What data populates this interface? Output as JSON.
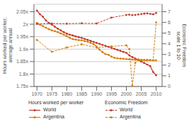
{
  "chart_data": {
    "type": "line",
    "ylabel": "Hours worked per worker,\naverage annual",
    "y2label": "Economic Freedom\nscale 1 to 10",
    "annotations": [
      "Hours worked per worker",
      "Economic Freedom"
    ],
    "xlim": [
      1969,
      2012
    ],
    "xticks": [
      1970,
      1975,
      1980,
      1985,
      1990,
      1995,
      2000,
      2005,
      2010
    ],
    "ylim": [
      1.75,
      2.08
    ],
    "yticks": [
      {
        "value": 1.75,
        "label": "1.75x"
      },
      {
        "value": 1.8,
        "label": "1.8x"
      },
      {
        "value": 1.85,
        "label": "1.85x"
      },
      {
        "value": 1.9,
        "label": "1.9x"
      },
      {
        "value": 1.95,
        "label": "1.95x"
      },
      {
        "value": 2.0,
        "label": "2x"
      },
      {
        "value": 2.05,
        "label": "2.05x"
      }
    ],
    "y2lim": [
      0,
      7.7
    ],
    "y2ticks": [
      0,
      1,
      2,
      3,
      4,
      5,
      6,
      7
    ],
    "grid": true,
    "series": [
      {
        "name": "World",
        "color": "#c0392b",
        "line_style": "solid",
        "marker": "circle",
        "x": [
          1970,
          1971,
          1972,
          1973,
          1974,
          1975,
          1976,
          1977,
          1978,
          1979,
          1980,
          1981,
          1982,
          1983,
          1984,
          1985,
          1986,
          1987,
          1988,
          1989,
          1990,
          1991,
          1992,
          1993,
          1994,
          1995,
          1996,
          1997,
          1998,
          1999,
          2000,
          2001,
          2002,
          2003,
          2004,
          2005,
          2006,
          2007,
          2008,
          2009,
          2010
        ],
        "values": [
          2.055,
          2.04,
          2.03,
          2.015,
          2.005,
          1.998,
          1.99,
          1.982,
          1.975,
          1.968,
          1.962,
          1.958,
          1.955,
          1.951,
          1.948,
          1.945,
          1.941,
          1.937,
          1.933,
          1.929,
          1.925,
          1.921,
          1.917,
          1.913,
          1.909,
          1.905,
          1.901,
          1.897,
          1.893,
          1.889,
          1.885,
          1.875,
          1.868,
          1.862,
          1.856,
          1.85,
          1.844,
          1.838,
          1.832,
          1.808,
          1.795
        ]
      },
      {
        "name": "Argentina",
        "color": "#d47c0f",
        "line_style": "solid",
        "marker": "circle",
        "x": [
          1970,
          1971,
          1972,
          1973,
          1974,
          1975,
          1976,
          1977,
          1978,
          1979,
          1980,
          1981,
          1982,
          1983,
          1984,
          1985,
          1986,
          1987,
          1988,
          1989,
          1990,
          1991,
          1992,
          1993,
          1994,
          1995,
          1996,
          1997,
          1998,
          1999,
          2000,
          2001,
          2002,
          2003,
          2004,
          2005,
          2006,
          2007,
          2008,
          2009,
          2010
        ],
        "values": [
          2.005,
          1.998,
          1.992,
          1.986,
          1.98,
          1.975,
          1.972,
          1.968,
          1.963,
          1.958,
          1.952,
          1.945,
          1.94,
          1.938,
          1.936,
          1.935,
          1.932,
          1.93,
          1.925,
          1.92,
          1.91,
          1.898,
          1.888,
          1.88,
          1.877,
          1.87,
          1.865,
          1.863,
          1.862,
          1.861,
          1.86,
          1.859,
          1.858,
          1.857,
          1.856,
          1.855,
          1.855,
          1.855,
          1.855,
          1.855,
          1.855
        ]
      },
      {
        "name": "World",
        "axis": "y2",
        "color": "#c0392b",
        "line_style": "dashed",
        "marker": "circle",
        "x": [
          1970,
          1975,
          1980,
          1985,
          1990,
          1995,
          2000,
          2001,
          2002,
          2003,
          2004,
          2005,
          2006,
          2007,
          2008,
          2009,
          2010
        ],
        "values": [
          5.85,
          5.9,
          5.88,
          5.92,
          5.9,
          6.45,
          6.7,
          6.72,
          6.68,
          6.7,
          6.74,
          6.78,
          6.82,
          6.84,
          6.8,
          6.76,
          6.88
        ]
      },
      {
        "name": "Argentina",
        "axis": "y2",
        "color": "#d47c0f",
        "line_style": "dashed",
        "marker": "circle",
        "x": [
          1970,
          1975,
          1980,
          1985,
          1990,
          1995,
          2000,
          2001,
          2002,
          2003,
          2004,
          2005,
          2006,
          2007,
          2008,
          2009,
          2010
        ],
        "values": [
          4.35,
          3.25,
          3.65,
          3.95,
          3.65,
          3.75,
          3.85,
          3.5,
          0.05,
          2.2,
          2.55,
          2.5,
          2.5,
          2.5,
          2.48,
          2.45,
          6.0
        ]
      }
    ]
  }
}
